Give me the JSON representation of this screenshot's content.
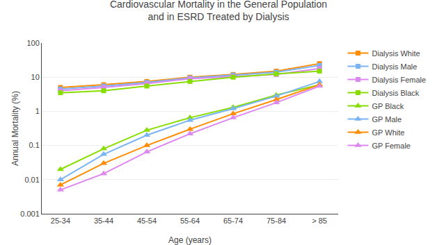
{
  "chart_data": {
    "type": "line",
    "title": "Cardiovascular Mortality in the General Population\nand in ESRD Treated by Dialysis",
    "xlabel": "Age (years)",
    "ylabel": "Annual Mortality (%)",
    "categories": [
      "25-34",
      "35-44",
      "45-54",
      "55-64",
      "65-74",
      "75-84",
      "> 85"
    ],
    "series": [
      {
        "name": "Dialysis White",
        "color": "#ff8c00",
        "marker": "square",
        "values": [
          5.0,
          6.0,
          7.5,
          10.0,
          12.0,
          15.0,
          25.0
        ]
      },
      {
        "name": "Dialysis Male",
        "color": "#7ab4f5",
        "marker": "square",
        "values": [
          4.5,
          5.5,
          7.0,
          9.5,
          11.5,
          14.0,
          22.0
        ]
      },
      {
        "name": "Dialysis Female",
        "color": "#dd88ee",
        "marker": "square",
        "values": [
          4.0,
          5.0,
          6.5,
          9.0,
          10.5,
          12.0,
          18.0
        ]
      },
      {
        "name": "Dialysis Black",
        "color": "#88dd00",
        "marker": "square",
        "values": [
          3.5,
          4.0,
          5.5,
          7.5,
          10.0,
          12.5,
          15.0
        ]
      },
      {
        "name": "GP Black",
        "color": "#88dd00",
        "marker": "triangle",
        "values": [
          0.02,
          0.08,
          0.28,
          0.65,
          1.3,
          3.0,
          6.0
        ]
      },
      {
        "name": "GP Male",
        "color": "#7ab4f5",
        "marker": "triangle",
        "values": [
          0.01,
          0.055,
          0.2,
          0.55,
          1.2,
          2.8,
          7.5
        ]
      },
      {
        "name": "GP White",
        "color": "#ff8c00",
        "marker": "triangle",
        "values": [
          0.007,
          0.03,
          0.1,
          0.3,
          0.85,
          2.2,
          6.0
        ]
      },
      {
        "name": "GP Female",
        "color": "#dd88ee",
        "marker": "triangle",
        "values": [
          0.005,
          0.015,
          0.065,
          0.22,
          0.65,
          1.8,
          5.5
        ]
      }
    ],
    "log": "y",
    "ylim": [
      0.001,
      100
    ],
    "yticks": [
      0.001,
      0.01,
      0.1,
      1,
      10,
      100
    ],
    "grid": true,
    "legend": "right"
  }
}
